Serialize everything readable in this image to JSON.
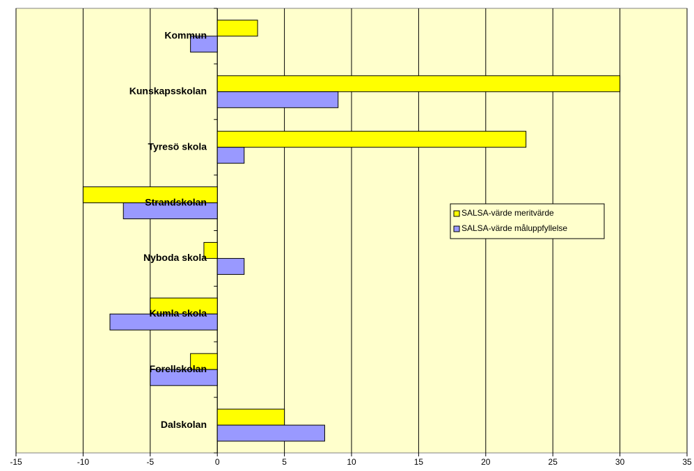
{
  "chart_data": {
    "type": "bar",
    "orientation": "horizontal",
    "categories": [
      "Kommun",
      "Kunskapsskolan",
      "Tyresö skola",
      "Strandskolan",
      "Nyboda skola",
      "Kumla skola",
      "Forellskolan",
      "Dalskolan"
    ],
    "series": [
      {
        "name": "SALSA-värde meritvärde",
        "color": "#ffff00",
        "values": [
          3,
          30,
          23,
          -10,
          -1,
          -5,
          -2,
          5
        ]
      },
      {
        "name": "SALSA-värde måluppfyllelse",
        "color": "#9999ff",
        "values": [
          -2,
          9,
          2,
          -7,
          2,
          -8,
          -5,
          8
        ]
      }
    ],
    "xlim": [
      -15,
      35
    ],
    "xticks": [
      -15,
      -10,
      -5,
      0,
      5,
      10,
      15,
      20,
      25,
      30,
      35
    ],
    "grid": true,
    "plot_background": "#ffffcc",
    "legend": "right"
  }
}
